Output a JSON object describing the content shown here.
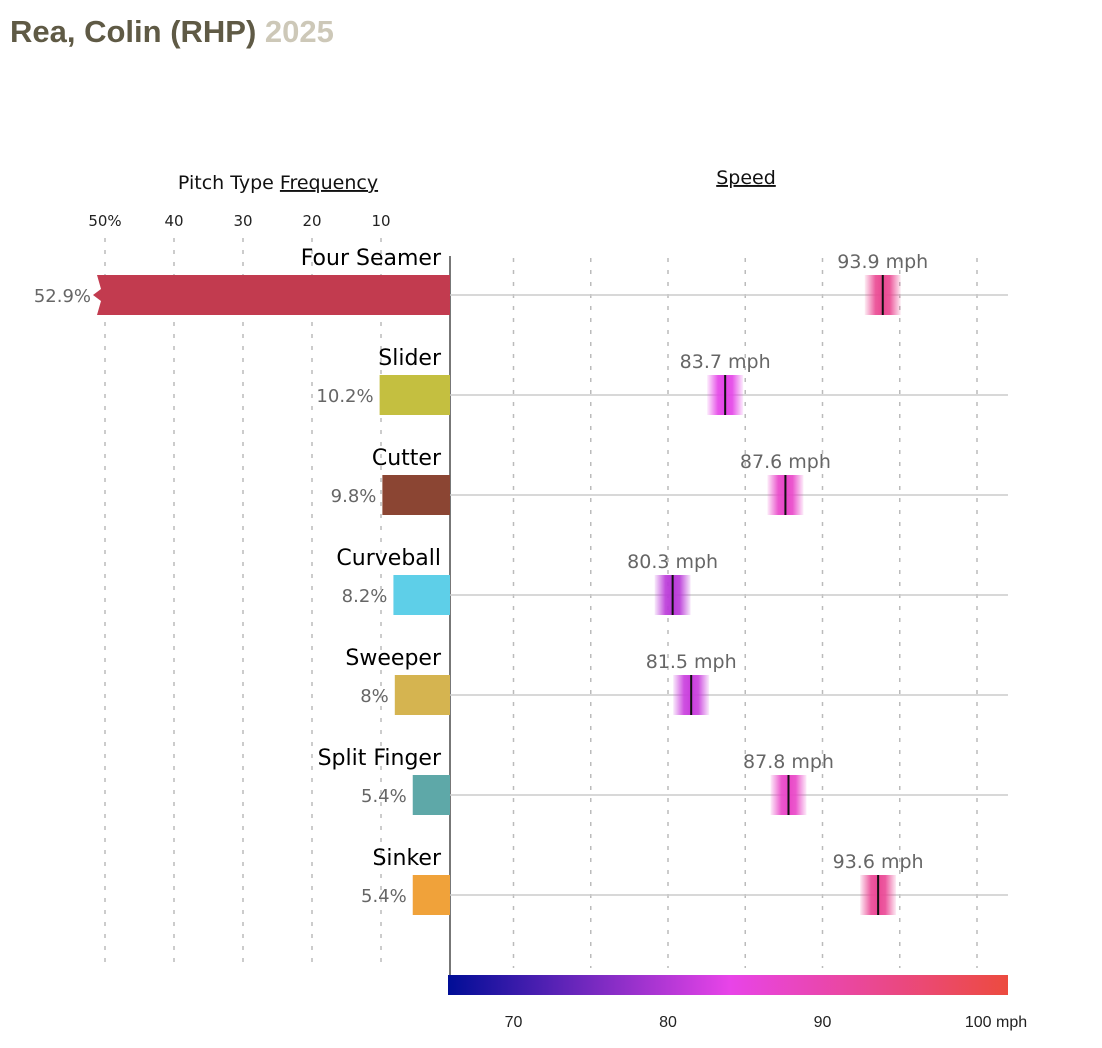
{
  "header": {
    "player": "Rea, Colin (RHP)",
    "year": "2025"
  },
  "chart_data": [
    {
      "type": "bar",
      "title": "Pitch Type Frequency",
      "title_prefix": "Pitch Type",
      "title_link": "Frequency",
      "xlim": [
        0,
        50
      ],
      "ticks": [
        50,
        40,
        30,
        20,
        10
      ],
      "tick_labels": [
        "50%",
        "40",
        "30",
        "20",
        "10"
      ],
      "categories": [
        "Four Seamer",
        "Slider",
        "Cutter",
        "Curveball",
        "Sweeper",
        "Split Finger",
        "Sinker"
      ],
      "values": [
        52.9,
        10.2,
        9.8,
        8.2,
        8,
        5.4,
        5.4
      ],
      "value_labels": [
        "52.9%",
        "10.2%",
        "9.8%",
        "8.2%",
        "8%",
        "5.4%",
        "5.4%"
      ],
      "colors": [
        "#c23b4f",
        "#c4bf40",
        "#8b4533",
        "#5ecfe8",
        "#d5b450",
        "#5ea8a8",
        "#f0a23a"
      ]
    },
    {
      "type": "scatter",
      "title": "Speed",
      "xlim": [
        65.5,
        103.5
      ],
      "ticks": [
        70,
        80,
        90,
        100
      ],
      "tick_labels": [
        "70",
        "80",
        "90",
        "100 mph"
      ],
      "grid_ticks": [
        70,
        75,
        80,
        85,
        90,
        95,
        100
      ],
      "categories": [
        "Four Seamer",
        "Slider",
        "Cutter",
        "Curveball",
        "Sweeper",
        "Split Finger",
        "Sinker"
      ],
      "values": [
        93.9,
        83.7,
        87.6,
        80.3,
        81.5,
        87.8,
        93.6
      ],
      "value_labels": [
        "93.9 mph",
        "83.7 mph",
        "87.6 mph",
        "80.3 mph",
        "81.5 mph",
        "87.8 mph",
        "93.6 mph"
      ],
      "colorscale": {
        "min": 65.5,
        "mid": 84,
        "max": 103.5,
        "colors": [
          "#000d96",
          "#e844e8",
          "#ec4b3f"
        ]
      }
    }
  ]
}
